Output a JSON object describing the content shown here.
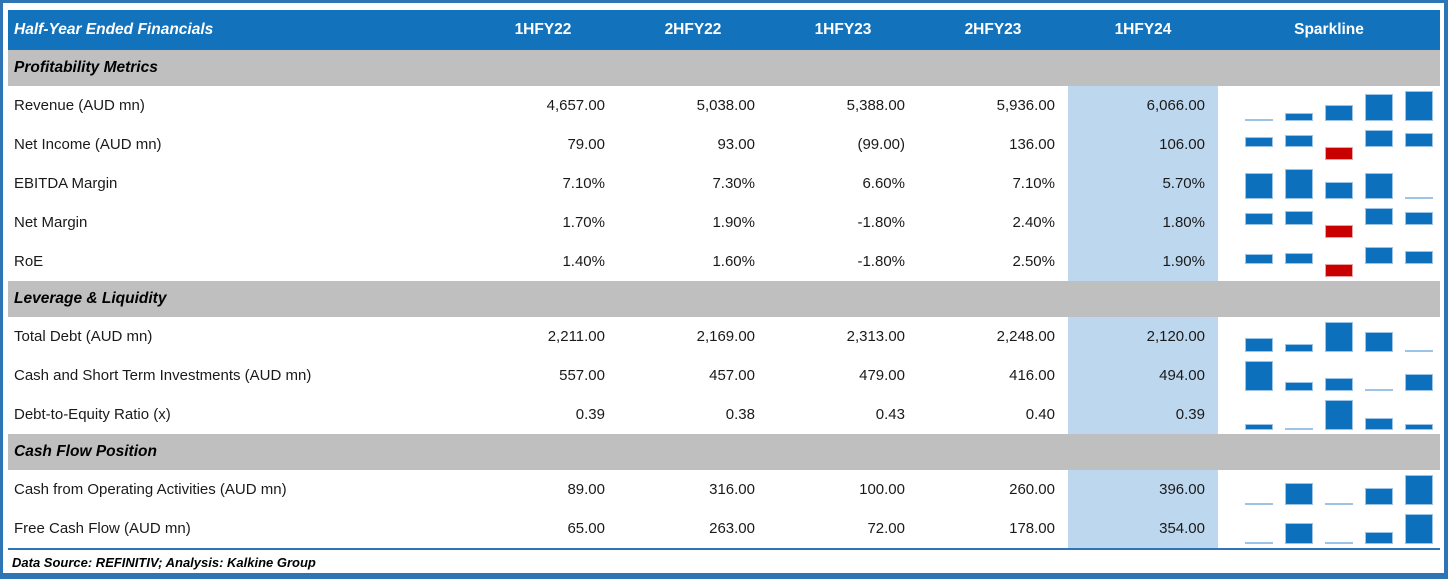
{
  "table": {
    "title": "Half-Year Ended Financials",
    "columns": [
      "1HFY22",
      "2HFY22",
      "1HFY23",
      "2HFY23",
      "1HFY24"
    ],
    "sparkline_header": "Sparkline",
    "highlighted_column": "1HFY24",
    "sections": [
      {
        "label": "Profitability Metrics",
        "rows": [
          {
            "label": "Revenue (AUD mn)",
            "display": [
              "4,657.00",
              "5,038.00",
              "5,388.00",
              "5,936.00",
              "6,066.00"
            ],
            "values": [
              4657,
              5038,
              5388,
              5936,
              6066
            ]
          },
          {
            "label": "Net Income (AUD mn)",
            "display": [
              "79.00",
              "93.00",
              "(99.00)",
              "136.00",
              "106.00"
            ],
            "values": [
              79,
              93,
              -99,
              136,
              106
            ]
          },
          {
            "label": "EBITDA Margin",
            "display": [
              "7.10%",
              "7.30%",
              "6.60%",
              "7.10%",
              "5.70%"
            ],
            "values": [
              7.1,
              7.3,
              6.6,
              7.1,
              5.7
            ]
          },
          {
            "label": "Net Margin",
            "display": [
              "1.70%",
              "1.90%",
              "-1.80%",
              "2.40%",
              "1.80%"
            ],
            "values": [
              1.7,
              1.9,
              -1.8,
              2.4,
              1.8
            ]
          },
          {
            "label": "RoE",
            "display": [
              "1.40%",
              "1.60%",
              "-1.80%",
              "2.50%",
              "1.90%"
            ],
            "values": [
              1.4,
              1.6,
              -1.8,
              2.5,
              1.9
            ]
          }
        ]
      },
      {
        "label": "Leverage & Liquidity",
        "rows": [
          {
            "label": "Total Debt (AUD mn)",
            "display": [
              "2,211.00",
              "2,169.00",
              "2,313.00",
              "2,248.00",
              "2,120.00"
            ],
            "values": [
              2211,
              2169,
              2313,
              2248,
              2120
            ]
          },
          {
            "label": "Cash and Short Term Investments (AUD mn)",
            "display": [
              "557.00",
              "457.00",
              "479.00",
              "416.00",
              "494.00"
            ],
            "values": [
              557,
              457,
              479,
              416,
              494
            ]
          },
          {
            "label": "Debt-to-Equity Ratio (x)",
            "display": [
              "0.39",
              "0.38",
              "0.43",
              "0.40",
              "0.39"
            ],
            "values": [
              0.39,
              0.38,
              0.43,
              0.4,
              0.39
            ]
          }
        ]
      },
      {
        "label": "Cash Flow Position",
        "rows": [
          {
            "label": "Cash from Operating Activities (AUD mn)",
            "display": [
              "89.00",
              "316.00",
              "100.00",
              "260.00",
              "396.00"
            ],
            "values": [
              89,
              316,
              100,
              260,
              396
            ]
          },
          {
            "label": "Free Cash Flow (AUD mn)",
            "display": [
              "65.00",
              "263.00",
              "72.00",
              "178.00",
              "354.00"
            ],
            "values": [
              65,
              263,
              72,
              178,
              354
            ]
          }
        ]
      }
    ]
  },
  "footer": {
    "text": "Data Source: REFINITIV; Analysis: Kalkine Group"
  },
  "colors": {
    "header_blue": "#1272BC",
    "outer_border_blue": "#2E75B6",
    "band_gray": "#BFBFBF",
    "highlight_blue": "#BDD7EE",
    "bar_blue": "#0C70BD",
    "bar_red": "#C80000",
    "thin_bar_blue": "#9DC3E6"
  },
  "chart_data": {
    "type": "table",
    "title": "Half-Year Ended Financials",
    "categories": [
      "1HFY22",
      "2HFY22",
      "1HFY23",
      "2HFY23",
      "1HFY24"
    ],
    "highlighted_category": "1HFY24",
    "sparkline_type": "bar",
    "sparkline_negative_color": "#C80000",
    "series": [
      {
        "name": "Revenue (AUD mn)",
        "section": "Profitability Metrics",
        "values": [
          4657,
          5038,
          5388,
          5936,
          6066
        ]
      },
      {
        "name": "Net Income (AUD mn)",
        "section": "Profitability Metrics",
        "values": [
          79,
          93,
          -99,
          136,
          106
        ]
      },
      {
        "name": "EBITDA Margin (%)",
        "section": "Profitability Metrics",
        "values": [
          7.1,
          7.3,
          6.6,
          7.1,
          5.7
        ]
      },
      {
        "name": "Net Margin (%)",
        "section": "Profitability Metrics",
        "values": [
          1.7,
          1.9,
          -1.8,
          2.4,
          1.8
        ]
      },
      {
        "name": "RoE (%)",
        "section": "Profitability Metrics",
        "values": [
          1.4,
          1.6,
          -1.8,
          2.5,
          1.9
        ]
      },
      {
        "name": "Total Debt (AUD mn)",
        "section": "Leverage & Liquidity",
        "values": [
          2211,
          2169,
          2313,
          2248,
          2120
        ]
      },
      {
        "name": "Cash and Short Term Investments (AUD mn)",
        "section": "Leverage & Liquidity",
        "values": [
          557,
          457,
          479,
          416,
          494
        ]
      },
      {
        "name": "Debt-to-Equity Ratio (x)",
        "section": "Leverage & Liquidity",
        "values": [
          0.39,
          0.38,
          0.43,
          0.4,
          0.39
        ]
      },
      {
        "name": "Cash from Operating Activities (AUD mn)",
        "section": "Cash Flow Position",
        "values": [
          89,
          316,
          100,
          260,
          396
        ]
      },
      {
        "name": "Free Cash Flow (AUD mn)",
        "section": "Cash Flow Position",
        "values": [
          65,
          263,
          72,
          178,
          354
        ]
      }
    ],
    "source_note": "Data Source: REFINITIV; Analysis: Kalkine Group"
  }
}
